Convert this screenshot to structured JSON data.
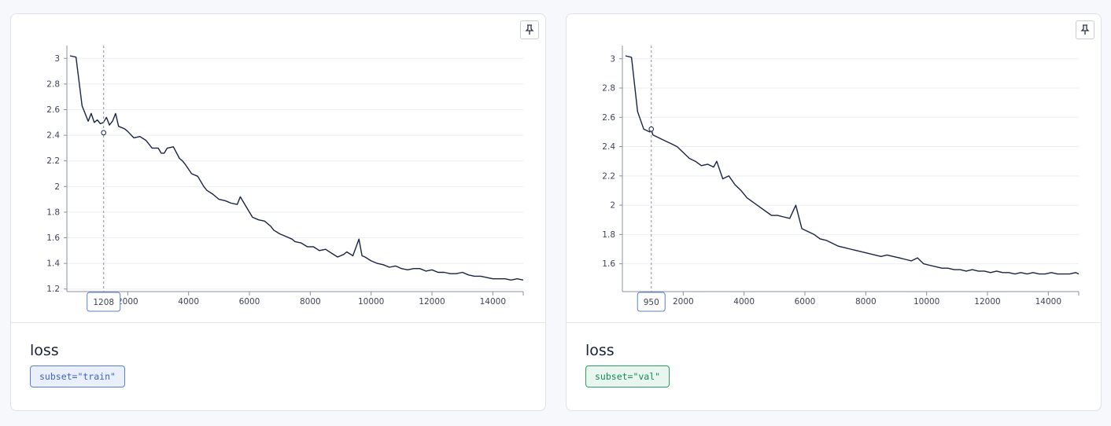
{
  "panels": [
    {
      "title": "loss",
      "subset_label": "subset=\"train\"",
      "subset_color": "#3b63c9",
      "subset_bg": "#eaf0fb",
      "subset_border": "#5a7fd0",
      "pin_icon": "pin-icon",
      "chart_data": {
        "type": "line",
        "series": [
          {
            "color": "#1a2245",
            "x": [
              100,
              300,
              500,
              700,
              800,
              900,
              1000,
              1100,
              1200,
              1300,
              1400,
              1500,
              1600,
              1700,
              1800,
              1900,
              2000,
              2200,
              2400,
              2600,
              2800,
              3000,
              3100,
              3200,
              3300,
              3500,
              3700,
              3800,
              3900,
              4100,
              4300,
              4500,
              4600,
              4800,
              5000,
              5200,
              5400,
              5600,
              5700,
              5900,
              6100,
              6300,
              6500,
              6700,
              6800,
              7000,
              7200,
              7400,
              7500,
              7700,
              7900,
              8100,
              8300,
              8500,
              8700,
              8900,
              9100,
              9200,
              9400,
              9600,
              9700,
              9800,
              10000,
              10200,
              10400,
              10600,
              10800,
              11000,
              11200,
              11400,
              11600,
              11800,
              12000,
              12200,
              12400,
              12600,
              12800,
              13000,
              13200,
              13400,
              13600,
              13800,
              14000,
              14200,
              14400,
              14600,
              14800,
              15000
            ],
            "y": [
              3.02,
              3.01,
              2.63,
              2.51,
              2.57,
              2.5,
              2.52,
              2.49,
              2.5,
              2.54,
              2.48,
              2.51,
              2.57,
              2.47,
              2.46,
              2.45,
              2.43,
              2.38,
              2.39,
              2.36,
              2.3,
              2.3,
              2.26,
              2.26,
              2.3,
              2.31,
              2.22,
              2.2,
              2.17,
              2.1,
              2.08,
              2.0,
              1.97,
              1.94,
              1.9,
              1.89,
              1.87,
              1.86,
              1.92,
              1.84,
              1.76,
              1.74,
              1.73,
              1.69,
              1.66,
              1.63,
              1.61,
              1.59,
              1.57,
              1.56,
              1.53,
              1.53,
              1.5,
              1.51,
              1.48,
              1.45,
              1.47,
              1.49,
              1.46,
              1.59,
              1.46,
              1.45,
              1.42,
              1.4,
              1.39,
              1.37,
              1.38,
              1.36,
              1.35,
              1.36,
              1.36,
              1.34,
              1.35,
              1.33,
              1.33,
              1.32,
              1.32,
              1.33,
              1.31,
              1.3,
              1.3,
              1.29,
              1.28,
              1.28,
              1.28,
              1.27,
              1.28,
              1.27
            ]
          }
        ],
        "xlim": [
          0,
          15000
        ],
        "ylim": [
          1.18,
          3.1
        ],
        "xticks": [
          2000,
          4000,
          6000,
          8000,
          10000,
          12000,
          14000
        ],
        "yticks": [
          1.2,
          1.4,
          1.6,
          1.8,
          2,
          2.2,
          2.4,
          2.6,
          2.8,
          3
        ],
        "grid": "horizontal",
        "hover": {
          "x": 1208,
          "y": 2.42,
          "label": "1208"
        }
      }
    },
    {
      "title": "loss",
      "subset_label": "subset=\"val\"",
      "subset_color": "#148a52",
      "subset_bg": "#e8f6ef",
      "subset_border": "#2a9e63",
      "pin_icon": "pin-icon",
      "chart_data": {
        "type": "line",
        "series": [
          {
            "color": "#1a2245",
            "x": [
              100,
              300,
              500,
              700,
              900,
              950,
              1000,
              1200,
              1400,
              1600,
              1800,
              2000,
              2200,
              2400,
              2600,
              2800,
              3000,
              3100,
              3300,
              3500,
              3700,
              3900,
              4100,
              4300,
              4500,
              4700,
              4900,
              5100,
              5300,
              5500,
              5700,
              5900,
              6100,
              6300,
              6500,
              6700,
              6900,
              7100,
              7300,
              7500,
              7700,
              7900,
              8100,
              8300,
              8500,
              8700,
              8900,
              9100,
              9300,
              9500,
              9700,
              9900,
              10100,
              10300,
              10500,
              10700,
              10900,
              11100,
              11300,
              11500,
              11700,
              11900,
              12100,
              12300,
              12500,
              12700,
              12900,
              13100,
              13300,
              13500,
              13700,
              13900,
              14100,
              14300,
              14500,
              14700,
              14900,
              15000
            ],
            "y": [
              3.02,
              3.01,
              2.64,
              2.52,
              2.5,
              2.52,
              2.48,
              2.46,
              2.44,
              2.42,
              2.4,
              2.36,
              2.32,
              2.3,
              2.27,
              2.28,
              2.26,
              2.3,
              2.18,
              2.2,
              2.14,
              2.1,
              2.05,
              2.02,
              1.99,
              1.96,
              1.93,
              1.93,
              1.92,
              1.91,
              2.0,
              1.84,
              1.82,
              1.8,
              1.77,
              1.76,
              1.74,
              1.72,
              1.71,
              1.7,
              1.69,
              1.68,
              1.67,
              1.66,
              1.65,
              1.66,
              1.65,
              1.64,
              1.63,
              1.62,
              1.64,
              1.6,
              1.59,
              1.58,
              1.57,
              1.57,
              1.56,
              1.56,
              1.55,
              1.56,
              1.55,
              1.55,
              1.54,
              1.55,
              1.54,
              1.54,
              1.53,
              1.54,
              1.53,
              1.54,
              1.53,
              1.53,
              1.54,
              1.53,
              1.53,
              1.53,
              1.54,
              1.53
            ]
          }
        ],
        "xlim": [
          0,
          15000
        ],
        "ylim": [
          1.41,
          3.09
        ],
        "xticks": [
          2000,
          4000,
          6000,
          8000,
          10000,
          12000,
          14000
        ],
        "yticks": [
          1.6,
          1.8,
          2,
          2.2,
          2.4,
          2.6,
          2.8,
          3
        ],
        "grid": "horizontal",
        "hover": {
          "x": 950,
          "y": 2.52,
          "label": "950"
        }
      }
    }
  ]
}
